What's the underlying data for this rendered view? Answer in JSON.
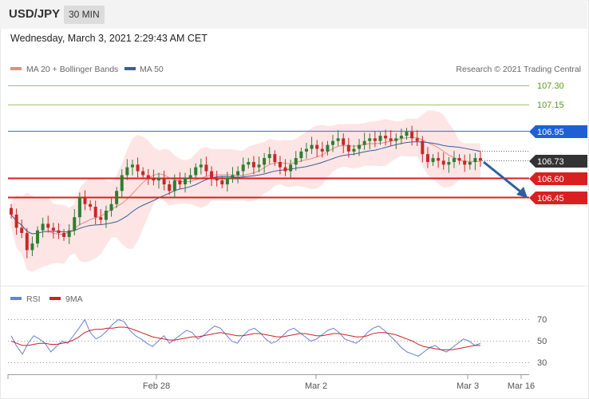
{
  "header": {
    "symbol": "USD/JPY",
    "timeframe": "30 MIN",
    "timestamp": "Wednesday, March 3, 2021 2:29:43 AM CET"
  },
  "legend": {
    "ma20": "MA 20 + Bollinger Bands",
    "ma50": "MA 50",
    "credit": "Research © 2021 Trading Central"
  },
  "rsi_legend": {
    "rsi": "RSI",
    "ma9": "9MA"
  },
  "colors": {
    "resistance": "#8fbf3f",
    "pivot": "#1f5fd6",
    "support": "#d92020",
    "price": "#333333",
    "bull": "#2e7d32",
    "bear": "#c62828",
    "band": "#fbe3e3",
    "ma20": "#e48a8a",
    "ma50": "#3a5f9a",
    "rsi": "#6b7fd6",
    "rsi_ma": "#cc2222"
  },
  "chart_data": [
    {
      "type": "candlestick",
      "title": "USD/JPY 30 MIN",
      "x_ticks": [
        "Feb 28",
        "Mar 2",
        "Mar 3",
        "Mar 16"
      ],
      "ylim": [
        106.0,
        107.35
      ],
      "levels": [
        {
          "value": 107.3,
          "label": "107.30",
          "kind": "resistance"
        },
        {
          "value": 107.15,
          "label": "107.15",
          "kind": "resistance"
        },
        {
          "value": 106.95,
          "label": "106.95",
          "kind": "pivot"
        },
        {
          "value": 106.73,
          "label": "106.73",
          "kind": "price"
        },
        {
          "value": 106.6,
          "label": "106.60",
          "kind": "support"
        },
        {
          "value": 106.45,
          "label": "106.45",
          "kind": "support"
        }
      ],
      "close_series": [
        106.32,
        106.22,
        106.18,
        106.05,
        106.1,
        106.2,
        106.25,
        106.22,
        106.2,
        106.18,
        106.15,
        106.2,
        106.3,
        106.45,
        106.4,
        106.38,
        106.3,
        106.28,
        106.35,
        106.4,
        106.5,
        106.62,
        106.68,
        106.7,
        106.65,
        106.62,
        106.6,
        106.58,
        106.6,
        106.55,
        106.5,
        106.58,
        106.55,
        106.6,
        106.62,
        106.68,
        106.7,
        106.65,
        106.6,
        106.58,
        106.55,
        106.6,
        106.62,
        106.65,
        106.7,
        106.72,
        106.68,
        106.7,
        106.75,
        106.78,
        106.72,
        106.68,
        106.65,
        106.7,
        106.75,
        106.8,
        106.82,
        106.85,
        106.82,
        106.8,
        106.85,
        106.88,
        106.9,
        106.85,
        106.8,
        106.82,
        106.85,
        106.88,
        106.9,
        106.88,
        106.92,
        106.9,
        106.88,
        106.9,
        106.92,
        106.95,
        106.9,
        106.88,
        106.78,
        106.72,
        106.75,
        106.73,
        106.7,
        106.72,
        106.75,
        106.73,
        106.7,
        106.72,
        106.75,
        106.73
      ],
      "projection": {
        "from": 106.73,
        "to": 106.45
      },
      "series": [
        {
          "name": "MA 20 + Bollinger Bands"
        },
        {
          "name": "MA 50"
        }
      ]
    },
    {
      "type": "line",
      "x_ticks": [
        "Feb 28",
        "Mar 2",
        "Mar 3",
        "Mar 16"
      ],
      "y_ticks": [
        "70",
        "50",
        "30"
      ],
      "ylim": [
        25,
        75
      ],
      "series": [
        {
          "name": "RSI",
          "values": [
            55,
            45,
            38,
            48,
            55,
            52,
            48,
            40,
            45,
            50,
            48,
            55,
            62,
            70,
            58,
            52,
            55,
            60,
            66,
            70,
            68,
            60,
            55,
            52,
            48,
            45,
            50,
            55,
            48,
            52,
            56,
            60,
            58,
            52,
            55,
            60,
            64,
            62,
            56,
            50,
            48,
            55,
            60,
            62,
            58,
            52,
            48,
            50,
            55,
            60,
            62,
            58,
            54,
            50,
            52,
            56,
            60,
            62,
            58,
            52,
            50,
            48,
            52,
            58,
            62,
            64,
            60,
            55,
            50,
            44,
            40,
            38,
            36,
            40,
            44,
            46,
            42,
            40,
            44,
            48,
            52,
            50,
            46,
            48
          ]
        },
        {
          "name": "9MA",
          "values": [
            50,
            48,
            46,
            46,
            47,
            48,
            48,
            47,
            47,
            48,
            49,
            51,
            54,
            58,
            60,
            61,
            61,
            62,
            62,
            63,
            63,
            62,
            60,
            58,
            56,
            54,
            53,
            52,
            51,
            51,
            52,
            53,
            54,
            54,
            55,
            56,
            57,
            58,
            57,
            56,
            55,
            55,
            56,
            57,
            57,
            56,
            55,
            54,
            54,
            55,
            56,
            57,
            57,
            56,
            55,
            55,
            56,
            57,
            57,
            56,
            55,
            54,
            54,
            55,
            57,
            58,
            58,
            57,
            56,
            54,
            52,
            50,
            47,
            45,
            44,
            43,
            42,
            42,
            42,
            43,
            44,
            45,
            46,
            46
          ]
        }
      ]
    }
  ]
}
